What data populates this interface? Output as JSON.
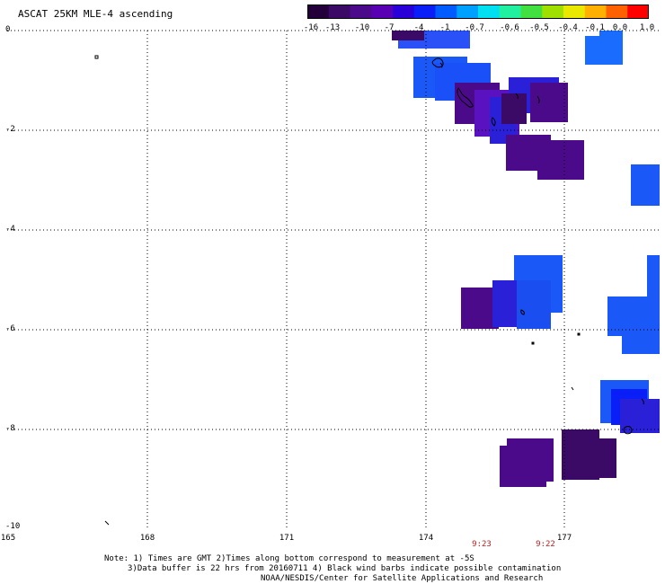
{
  "title": "ASCAT 25KM MLE-4 ascending",
  "colorbar": {
    "colors": [
      "#23003a",
      "#3a0a66",
      "#4b0a8a",
      "#5a00b4",
      "#2a00d8",
      "#0a1ef8",
      "#005cff",
      "#00a0ff",
      "#00e0f0",
      "#20f0a0",
      "#40e040",
      "#a0e000",
      "#e8e800",
      "#ffb000",
      "#ff6000",
      "#ff0000"
    ],
    "labels": [
      "-16",
      "-13",
      "-10",
      "-7",
      "-4",
      "-1",
      "-0.7",
      "-0.6",
      "-0.5",
      "-0.4",
      "-0.1",
      "0.0",
      "1.0"
    ]
  },
  "axes": {
    "x_ticks": [
      "165",
      "168",
      "171",
      "174",
      "177"
    ],
    "y_ticks": [
      "0",
      "-2",
      "-4",
      "-6",
      "-8",
      "-10"
    ]
  },
  "time_labels": [
    "9:23",
    "9:22"
  ],
  "notes": [
    "Note: 1) Times are GMT 2)Times along bottom correspond to measurement at -5S",
    "3)Data buffer is 22 hrs from 20160711 4) Black wind barbs indicate possible contamination",
    "NOAA/NESDIS/Center for Satellite Applications and Research"
  ]
}
